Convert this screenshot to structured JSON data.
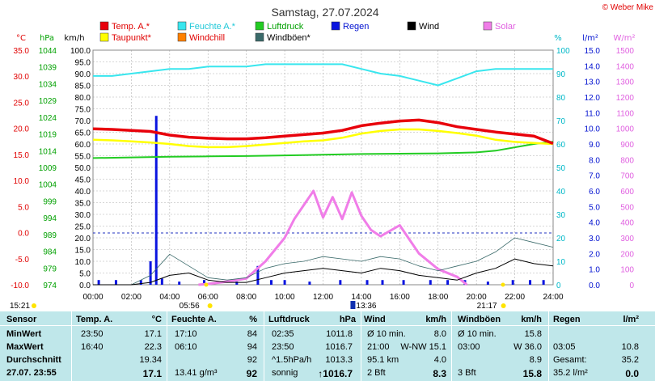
{
  "title": "Samstag, 27.07.2024",
  "brand": "© Weber Mike",
  "colors": {
    "temp": "#e8000b",
    "humidity": "#39e6ee",
    "pressure": "#22cc22",
    "rain": "#0a14e0",
    "wind": "#000000",
    "solar": "#f07de8",
    "dewpoint": "#ffff00",
    "windchill": "#ff8000",
    "gust": "#3a6a6a",
    "grid": "#b0b0b0"
  },
  "legend": [
    {
      "label": "Temp. A.*",
      "key": "temp"
    },
    {
      "label": "Feuchte A.*",
      "key": "humidity"
    },
    {
      "label": "Luftdruck",
      "key": "pressure"
    },
    {
      "label": "Regen",
      "key": "rain"
    },
    {
      "label": "Wind",
      "key": "wind"
    },
    {
      "label": "Solar",
      "key": "solar"
    },
    {
      "label": "Taupunkt*",
      "key": "dewpoint"
    },
    {
      "label": "Windchill",
      "key": "windchill"
    },
    {
      "label": "Windböen*",
      "key": "gust"
    }
  ],
  "axes": {
    "temp_unit": "°C",
    "pressure_unit": "hPa",
    "wind_unit": "km/h",
    "humidity_unit": "%",
    "rain_unit": "l/m²",
    "solar_unit": "W/m²",
    "temp_ticks": [
      "35.0",
      "30.0",
      "25.0",
      "20.0",
      "15.0",
      "10.0",
      "5.0",
      "0.0",
      "-5.0",
      "-10.0"
    ],
    "pressure_ticks": [
      "1044",
      "1039",
      "1034",
      "1029",
      "1024",
      "1019",
      "1014",
      "1009",
      "1004",
      "999",
      "994",
      "989",
      "984",
      "979",
      "974"
    ],
    "wind_ticks": [
      "100.0",
      "95.0",
      "90.0",
      "85.0",
      "80.0",
      "75.0",
      "70.0",
      "65.0",
      "60.0",
      "55.0",
      "50.0",
      "45.0",
      "40.0",
      "35.0",
      "30.0",
      "25.0",
      "20.0",
      "15.0",
      "10.0",
      "5.0",
      "0.0"
    ],
    "humidity_ticks": [
      "100",
      "90",
      "80",
      "70",
      "60",
      "50",
      "40",
      "30",
      "20",
      "10",
      "0"
    ],
    "rain_ticks": [
      "15.0",
      "14.0",
      "13.0",
      "12.0",
      "11.0",
      "10.0",
      "9.0",
      "8.0",
      "7.0",
      "6.0",
      "5.0",
      "4.0",
      "3.0",
      "2.0",
      "1.0",
      "0.0"
    ],
    "solar_ticks": [
      "1500",
      "1400",
      "1300",
      "1200",
      "1100",
      "1000",
      "900",
      "800",
      "700",
      "600",
      "500",
      "400",
      "300",
      "200",
      "100",
      "0"
    ],
    "time_ticks": [
      "00:00",
      "02:00",
      "04:00",
      "06:00",
      "08:00",
      "10:00",
      "12:00",
      "14:00",
      "16:00",
      "18:00",
      "20:00",
      "22:00",
      "24:00"
    ]
  },
  "sun": {
    "sunset_prev": "15:21",
    "sunrise": "05:56",
    "noon": "13:36",
    "sunset": "21:17"
  },
  "chart_data": {
    "type": "line",
    "title": "Samstag, 27.07.2024",
    "x_range": [
      "00:00",
      "24:00"
    ],
    "series": [
      {
        "name": "Temp. A.*",
        "unit": "°C",
        "x": [
          0,
          1,
          2,
          3,
          4,
          5,
          6,
          7,
          8,
          9,
          10,
          11,
          12,
          13,
          14,
          15,
          16,
          17,
          18,
          19,
          20,
          21,
          22,
          23,
          24
        ],
        "values": [
          19.9,
          19.8,
          19.6,
          19.4,
          18.7,
          18.3,
          18.1,
          18.0,
          18.0,
          18.2,
          18.5,
          18.8,
          19.1,
          19.6,
          20.5,
          21.0,
          21.4,
          21.6,
          21.1,
          20.3,
          19.8,
          19.3,
          18.9,
          18.5,
          17.1
        ]
      },
      {
        "name": "Taupunkt*",
        "unit": "°C",
        "x": [
          0,
          1,
          2,
          3,
          4,
          5,
          6,
          7,
          8,
          9,
          10,
          11,
          12,
          13,
          14,
          15,
          16,
          17,
          18,
          19,
          20,
          21,
          22,
          23,
          24
        ],
        "values": [
          17.8,
          17.7,
          17.5,
          17.3,
          17.0,
          16.6,
          16.4,
          16.4,
          16.6,
          16.9,
          17.2,
          17.5,
          17.7,
          18.2,
          19.0,
          19.5,
          19.8,
          19.8,
          19.5,
          19.1,
          18.6,
          17.8,
          17.4,
          17.2,
          17.0
        ]
      },
      {
        "name": "Feuchte A.*",
        "unit": "%",
        "x": [
          0,
          1,
          2,
          3,
          4,
          5,
          6,
          7,
          8,
          9,
          10,
          11,
          12,
          13,
          14,
          15,
          16,
          17,
          18,
          19,
          20,
          21,
          22,
          23,
          24
        ],
        "values": [
          89,
          89,
          90,
          91,
          92,
          92,
          93,
          93,
          93,
          94,
          94,
          94,
          94,
          94,
          92,
          90,
          89,
          87,
          85,
          88,
          91,
          92,
          92,
          92,
          92
        ]
      },
      {
        "name": "Luftdruck",
        "unit": "hPa",
        "x": [
          0,
          2,
          4,
          6,
          8,
          10,
          12,
          14,
          16,
          18,
          20,
          21,
          22,
          23,
          24
        ],
        "values": [
          1011.8,
          1012.0,
          1012.2,
          1012.3,
          1012.4,
          1012.6,
          1012.8,
          1013.0,
          1013.1,
          1013.2,
          1013.5,
          1014.0,
          1015.0,
          1016.0,
          1016.7
        ]
      },
      {
        "name": "Wind",
        "unit": "km/h",
        "x": [
          0,
          2,
          3,
          4,
          5,
          6,
          7,
          8,
          9,
          10,
          11,
          12,
          13,
          14,
          15,
          16,
          17,
          18,
          19,
          20,
          21,
          22,
          23,
          24
        ],
        "values": [
          0,
          0,
          1,
          4,
          5,
          2,
          1,
          1,
          3,
          5,
          6,
          7,
          6,
          5,
          7,
          6,
          4,
          3,
          2,
          5,
          7,
          11,
          9,
          8
        ]
      },
      {
        "name": "Windböen*",
        "unit": "km/h",
        "x": [
          0,
          2,
          3,
          4,
          5,
          6,
          7,
          8,
          9,
          10,
          11,
          12,
          13,
          14,
          15,
          16,
          17,
          18,
          19,
          20,
          21,
          22,
          23,
          24
        ],
        "values": [
          0,
          0,
          4,
          13,
          8,
          3,
          2,
          3,
          7,
          9,
          10,
          12,
          11,
          10,
          12,
          11,
          8,
          6,
          8,
          10,
          14,
          20,
          18,
          16
        ]
      },
      {
        "name": "Solar",
        "unit": "W/m²",
        "x": [
          5.5,
          6,
          7,
          8,
          9,
          10,
          10.5,
          11,
          11.5,
          12,
          12.5,
          13,
          13.5,
          14,
          14.5,
          15,
          16,
          17,
          18,
          19,
          19.5
        ],
        "values": [
          0,
          5,
          20,
          40,
          150,
          300,
          420,
          510,
          600,
          430,
          560,
          420,
          590,
          440,
          350,
          310,
          380,
          200,
          100,
          50,
          0
        ]
      },
      {
        "name": "Regen",
        "unit": "l/m²",
        "x": [
          0.3,
          1.2,
          2.5,
          3.0,
          3.3,
          3.6,
          4.5,
          5.8,
          7.5,
          8.6,
          9.3,
          10.0,
          11.3,
          12.9,
          14.3,
          15.1,
          16.2,
          17.6,
          18.5,
          19.4,
          20.6,
          21.9,
          22.8,
          23.5
        ],
        "values": [
          0.3,
          0.3,
          0.3,
          1.5,
          10.8,
          0.4,
          0.2,
          0.3,
          0.2,
          1.2,
          0.3,
          0.3,
          0.2,
          0.3,
          0.3,
          0.3,
          0.3,
          0.3,
          0.3,
          0.3,
          0.2,
          0.3,
          0.3,
          0.3
        ]
      }
    ],
    "ranges": {
      "temp": [
        -10,
        35
      ],
      "pressure": [
        974,
        1044
      ],
      "wind": [
        0,
        100
      ],
      "humidity": [
        0,
        100
      ],
      "rain": [
        0,
        15
      ],
      "solar": [
        0,
        1500
      ]
    }
  },
  "table": {
    "headers": [
      "Sensor",
      "Temp. A.",
      "°C",
      "Feuchte A.",
      "%",
      "Luftdruck",
      "hPa",
      "Wind",
      "km/h",
      "Windböen",
      "km/h",
      "Regen",
      "l/m²"
    ],
    "rows": [
      {
        "label": "MinWert",
        "temp_time": "23:50",
        "temp": "17.1",
        "hum_time": "17:10",
        "hum": "84",
        "press_time": "02:35",
        "press": "1011.8",
        "wind_a": "Ø 10 min.",
        "wind": "8.0",
        "gust_a": "Ø 10 min.",
        "gust": "15.8",
        "rain_a": "",
        "rain": ""
      },
      {
        "label": "MaxWert",
        "temp_time": "16:40",
        "temp": "22.3",
        "hum_time": "06:10",
        "hum": "94",
        "press_time": "23:50",
        "press": "1016.7",
        "wind_a": "21:00",
        "wind_b": "W-NW 15.1",
        "gust_a": "03:00",
        "gust": "W 36.0",
        "rain_a": "03:05",
        "rain": "10.8"
      },
      {
        "label": "Durchschnitt",
        "temp_time": "",
        "temp": "19.34",
        "hum_time": "",
        "hum": "92",
        "press_time": "^1.5hPa/h",
        "press": "1013.3",
        "wind_a": "95.1 km",
        "wind": "4.0",
        "gust_a": "",
        "gust": "8.9",
        "rain_a": "Gesamt:",
        "rain": "35.2"
      },
      {
        "label": "27.07. 23:55",
        "temp_time": "",
        "temp": "17.1",
        "hum_time": "13.41 g/m³",
        "hum": "92",
        "press_time": "sonnig",
        "press": "↑1016.7",
        "wind_a": "2 Bft",
        "wind": "8.3",
        "gust_a": "3 Bft",
        "gust": "15.8",
        "rain_a": "35.2 l/m²",
        "rain": "0.0"
      }
    ]
  }
}
